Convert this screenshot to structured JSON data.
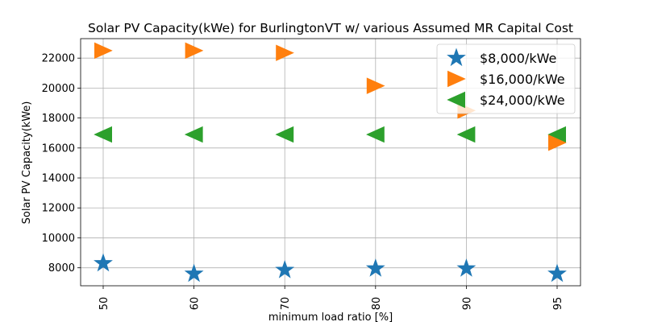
{
  "chart_data": {
    "type": "scatter",
    "title": "Solar PV Capacity(kWe) for BurlingtonVT w/ various Assumed MR Capital Cost",
    "xlabel": "minimum load ratio [%]",
    "ylabel": "Solar PV Capacity(kWe)",
    "categories": [
      "50",
      "60",
      "70",
      "80",
      "90",
      "95"
    ],
    "ylim": [
      6800,
      23300
    ],
    "yticks": [
      8000,
      10000,
      12000,
      14000,
      16000,
      18000,
      20000,
      22000
    ],
    "grid": true,
    "legend_position": "top-right",
    "series": [
      {
        "name": "$8,000/kWe",
        "marker": "star",
        "color": "#1f77b4",
        "values": [
          8300,
          7600,
          7850,
          7950,
          7950,
          7600
        ]
      },
      {
        "name": "$16,000/kWe",
        "marker": "triangle-right",
        "color": "#ff7f0e",
        "values": [
          22500,
          22500,
          22350,
          20150,
          18500,
          16350
        ]
      },
      {
        "name": "$24,000/kWe",
        "marker": "triangle-left",
        "color": "#2ca02c",
        "values": [
          16900,
          16900,
          16900,
          16900,
          16900,
          16900
        ]
      }
    ]
  }
}
